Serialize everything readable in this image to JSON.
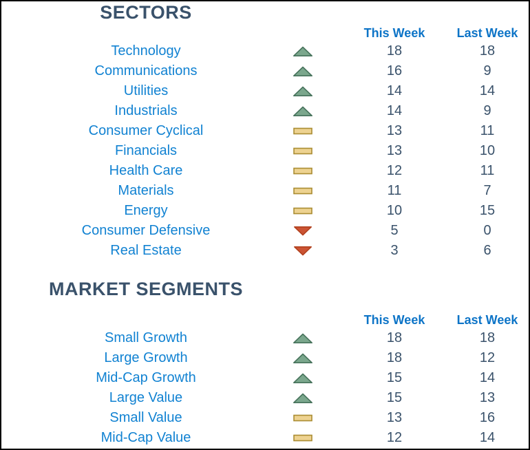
{
  "colors": {
    "heading_text": "#3A526B",
    "value_text": "#3A526B",
    "label_blue": "#1182D2",
    "column_header_blue": "#0D74C7",
    "trend_up_fill": "#7BA78D",
    "trend_up_stroke": "#47735C",
    "trend_flat_fill": "#EDD290",
    "trend_flat_stroke": "#AA8D33",
    "trend_down_fill": "#CB5434",
    "trend_down_stroke": "#B2411F"
  },
  "tables": [
    {
      "title": "SECTORS",
      "columns": [
        "This Week",
        "Last Week"
      ],
      "rows": [
        {
          "label": "Technology",
          "trend": "up",
          "this_week": "18",
          "last_week": "18"
        },
        {
          "label": "Communications",
          "trend": "up",
          "this_week": "16",
          "last_week": "9"
        },
        {
          "label": "Utilities",
          "trend": "up",
          "this_week": "14",
          "last_week": "14"
        },
        {
          "label": "Industrials",
          "trend": "up",
          "this_week": "14",
          "last_week": "9"
        },
        {
          "label": "Consumer Cyclical",
          "trend": "flat",
          "this_week": "13",
          "last_week": "11"
        },
        {
          "label": "Financials",
          "trend": "flat",
          "this_week": "13",
          "last_week": "10"
        },
        {
          "label": "Health Care",
          "trend": "flat",
          "this_week": "12",
          "last_week": "11"
        },
        {
          "label": "Materials",
          "trend": "flat",
          "this_week": "11",
          "last_week": "7"
        },
        {
          "label": "Energy",
          "trend": "flat",
          "this_week": "10",
          "last_week": "15"
        },
        {
          "label": "Consumer Defensive",
          "trend": "down",
          "this_week": "5",
          "last_week": "0"
        },
        {
          "label": "Real Estate",
          "trend": "down",
          "this_week": "3",
          "last_week": "6"
        }
      ]
    },
    {
      "title": "MARKET SEGMENTS",
      "columns": [
        "This Week",
        "Last Week"
      ],
      "rows": [
        {
          "label": "Small Growth",
          "trend": "up",
          "this_week": "18",
          "last_week": "18"
        },
        {
          "label": "Large Growth",
          "trend": "up",
          "this_week": "18",
          "last_week": "12"
        },
        {
          "label": "Mid-Cap Growth",
          "trend": "up",
          "this_week": "15",
          "last_week": "14"
        },
        {
          "label": "Large Value",
          "trend": "up",
          "this_week": "15",
          "last_week": "13"
        },
        {
          "label": "Small Value",
          "trend": "flat",
          "this_week": "13",
          "last_week": "16"
        },
        {
          "label": "Mid-Cap Value",
          "trend": "flat",
          "this_week": "12",
          "last_week": "14"
        }
      ]
    }
  ]
}
